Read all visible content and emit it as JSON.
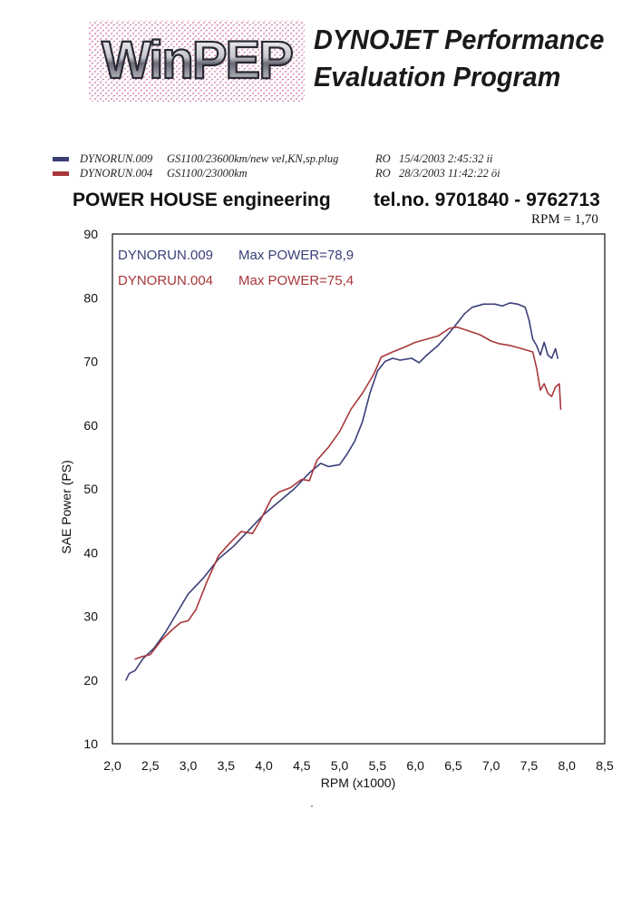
{
  "header": {
    "logo_text": "WinPEP",
    "title_line1": "DYNOJET Performance",
    "title_line2": "Evaluation Program"
  },
  "runs": [
    {
      "name": "DYNORUN.009",
      "desc": "GS1100/23600km/new vel,KN,sp.plug",
      "ro": "RO",
      "timestamp": "15/4/2003 2:45:32 ii",
      "color": "#3a3f78"
    },
    {
      "name": "DYNORUN.004",
      "desc": "GS1100/23000km",
      "ro": "RO",
      "timestamp": "28/3/2003 11:42:22 öi",
      "color": "#a8373b"
    }
  ],
  "company": "POWER HOUSE engineering",
  "tel": "tel.no. 9701840 - 9762713",
  "rpm_factor": "RPM = 1,70",
  "chart_data": {
    "type": "line",
    "xlabel": "RPM (x1000)",
    "ylabel": "SAE Power (PS)",
    "xlim": [
      2.0,
      8.5
    ],
    "ylim": [
      10,
      90
    ],
    "xticks": [
      "2,0",
      "2,5",
      "3,0",
      "3,5",
      "4,0",
      "4,5",
      "5,0",
      "5,5",
      "6,0",
      "6,5",
      "7,0",
      "7,5",
      "8,0",
      "8,5"
    ],
    "yticks": [
      "10",
      "20",
      "30",
      "40",
      "50",
      "60",
      "70",
      "80",
      "90"
    ],
    "grid": false,
    "legend_placement": "top-left",
    "legend": [
      {
        "label": "DYNORUN.009",
        "max_label": "Max POWER=78,9",
        "color": "#3a3f78"
      },
      {
        "label": "DYNORUN.004",
        "max_label": "Max POWER=75,4",
        "color": "#a8373b"
      }
    ],
    "series": [
      {
        "name": "DYNORUN.009",
        "color": "#3a3f78",
        "x": [
          2.18,
          2.22,
          2.3,
          2.4,
          2.55,
          2.7,
          2.85,
          3.0,
          3.2,
          3.4,
          3.6,
          3.8,
          4.0,
          4.2,
          4.4,
          4.6,
          4.75,
          4.85,
          5.0,
          5.1,
          5.2,
          5.3,
          5.4,
          5.5,
          5.6,
          5.7,
          5.8,
          5.95,
          6.05,
          6.15,
          6.3,
          6.45,
          6.55,
          6.65,
          6.75,
          6.9,
          7.05,
          7.15,
          7.25,
          7.35,
          7.45,
          7.5,
          7.55,
          7.6,
          7.65,
          7.7,
          7.75,
          7.8,
          7.85,
          7.88
        ],
        "y": [
          20.0,
          21.0,
          21.5,
          23.3,
          25.0,
          27.5,
          30.5,
          33.5,
          36.0,
          39.0,
          41.0,
          43.5,
          46.0,
          48.0,
          50.0,
          52.5,
          54.0,
          53.5,
          53.8,
          55.5,
          57.5,
          60.5,
          65.0,
          68.5,
          70.0,
          70.5,
          70.2,
          70.5,
          69.8,
          71.0,
          72.5,
          74.5,
          76.0,
          77.5,
          78.5,
          79.0,
          79.0,
          78.7,
          79.2,
          79.0,
          78.5,
          76.5,
          73.5,
          72.5,
          71.0,
          73.0,
          71.0,
          70.5,
          72.0,
          70.5
        ]
      },
      {
        "name": "DYNORUN.004",
        "color": "#a8373b",
        "x": [
          2.3,
          2.4,
          2.5,
          2.65,
          2.8,
          2.9,
          3.0,
          3.1,
          3.25,
          3.4,
          3.55,
          3.7,
          3.85,
          3.95,
          4.1,
          4.2,
          4.35,
          4.5,
          4.6,
          4.7,
          4.85,
          5.0,
          5.15,
          5.3,
          5.45,
          5.55,
          5.7,
          5.85,
          6.0,
          6.15,
          6.3,
          6.45,
          6.55,
          6.7,
          6.85,
          7.0,
          7.1,
          7.25,
          7.4,
          7.55,
          7.6,
          7.65,
          7.7,
          7.75,
          7.8,
          7.85,
          7.9,
          7.92
        ],
        "y": [
          23.3,
          23.7,
          24.0,
          26.3,
          28.0,
          29.0,
          29.3,
          31.0,
          35.5,
          39.5,
          41.5,
          43.3,
          43.0,
          45.0,
          48.5,
          49.5,
          50.2,
          51.5,
          51.3,
          54.5,
          56.5,
          59.0,
          62.5,
          65.0,
          68.0,
          70.7,
          71.5,
          72.2,
          73.0,
          73.5,
          74.0,
          75.2,
          75.4,
          74.8,
          74.2,
          73.2,
          72.8,
          72.5,
          72.0,
          71.5,
          69.0,
          65.5,
          66.5,
          65.0,
          64.5,
          66.0,
          66.5,
          62.5
        ]
      }
    ]
  }
}
